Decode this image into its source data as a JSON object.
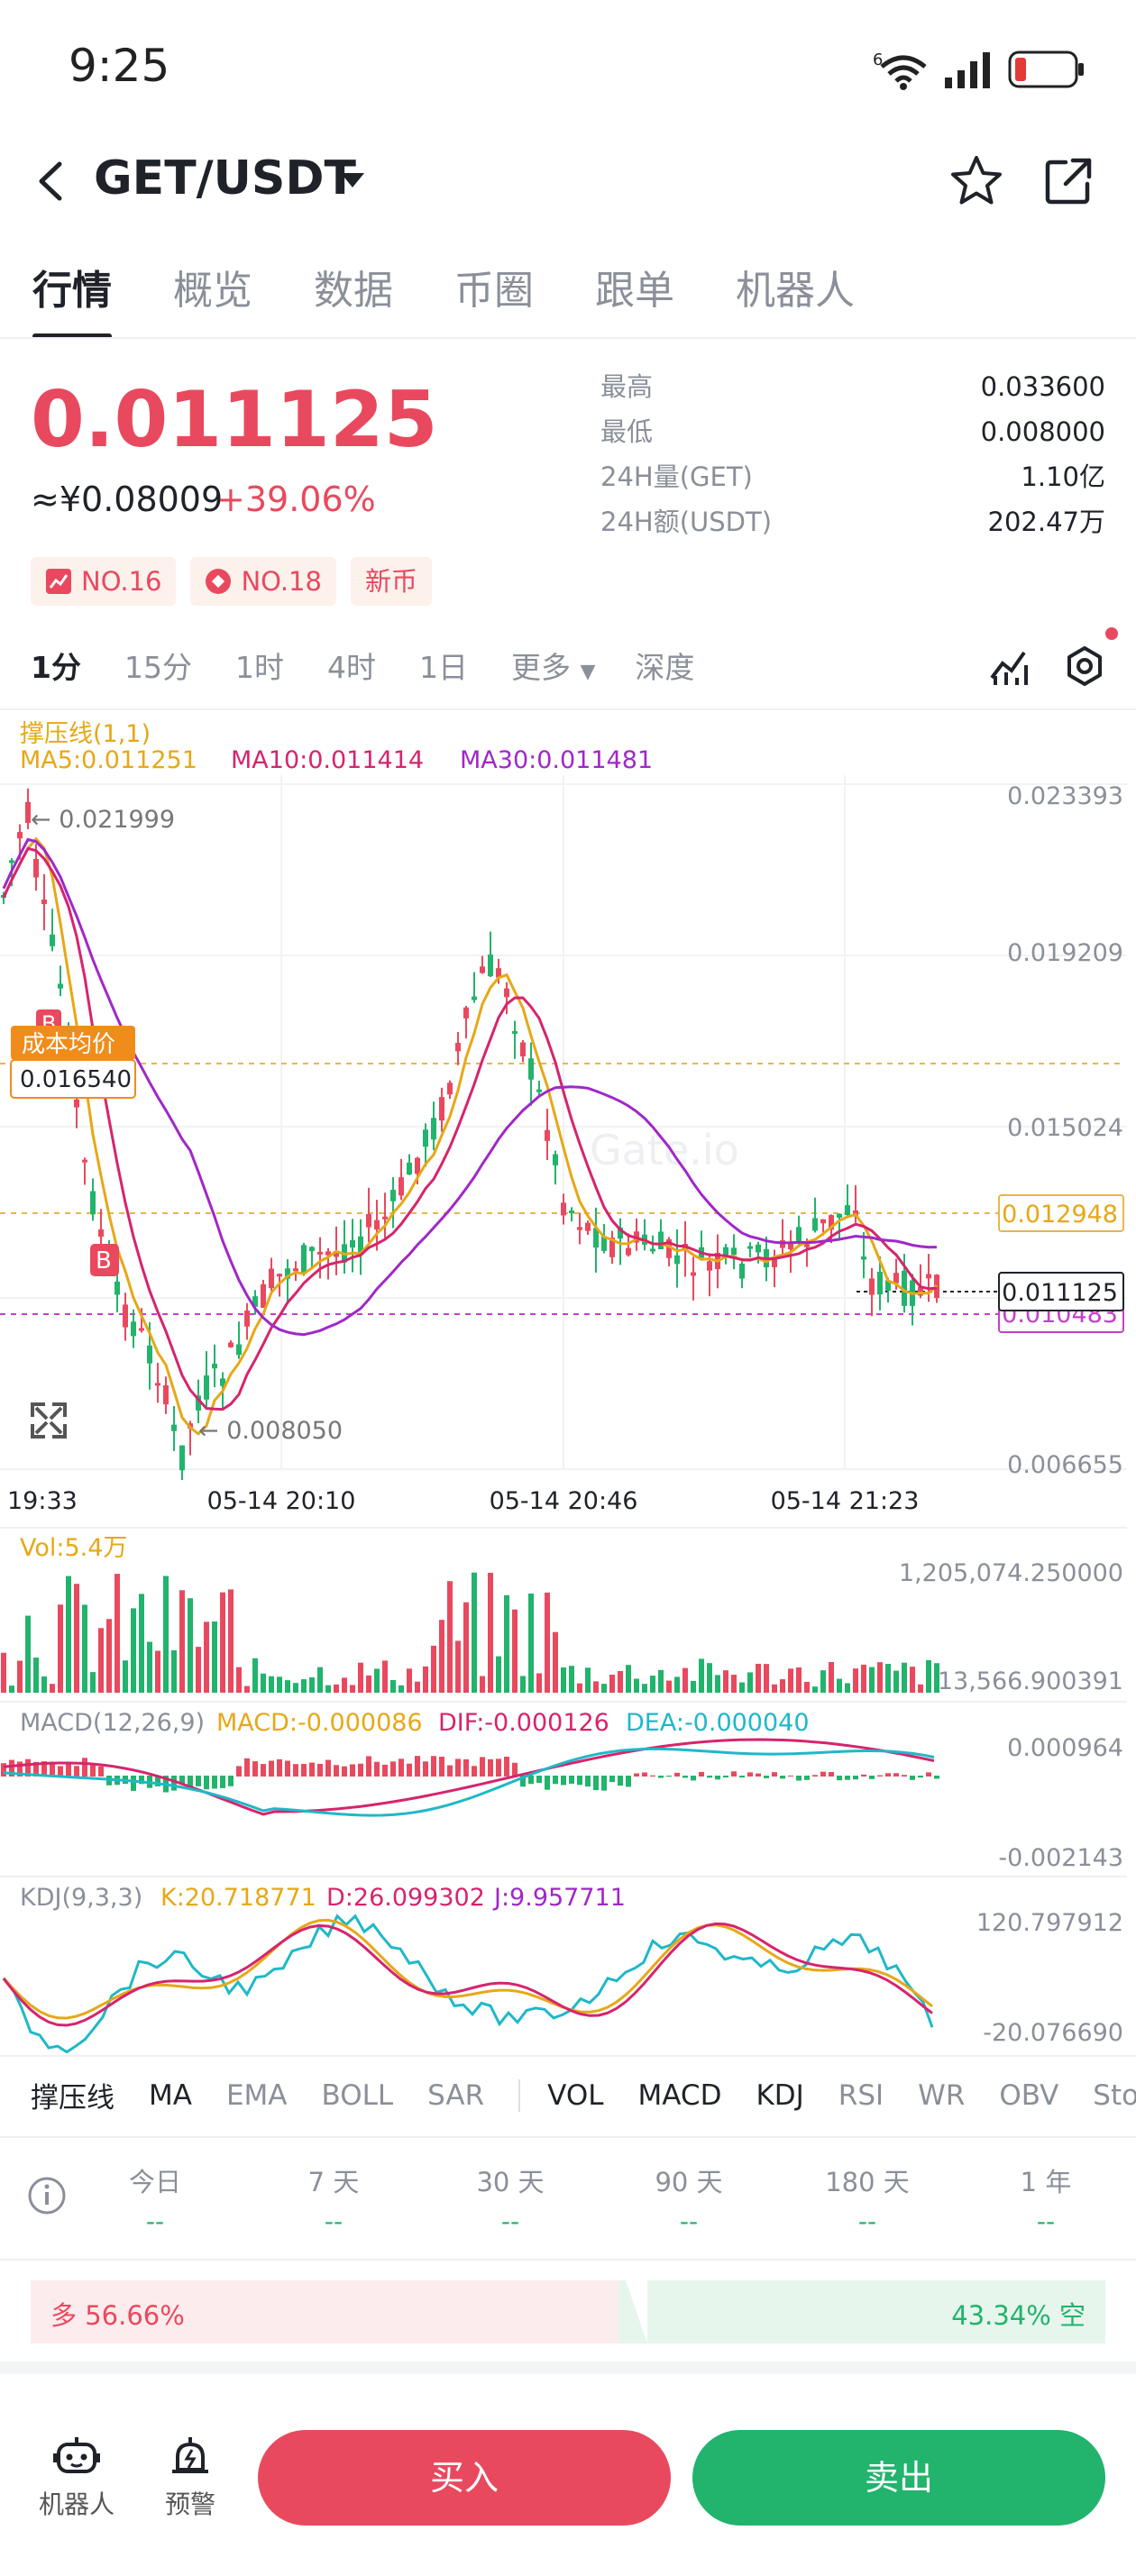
{
  "status_bar": {
    "time": "9:25",
    "wifi_badge": "6"
  },
  "header": {
    "pair": "GET/USDT"
  },
  "tabs": [
    "行情",
    "概览",
    "数据",
    "币圈",
    "跟单",
    "机器人"
  ],
  "price": {
    "last": "0.011125",
    "cny": "≈¥0.08009",
    "change": "+39.06%",
    "stats": [
      {
        "k": "最高",
        "v": "0.033600"
      },
      {
        "k": "最低",
        "v": "0.008000"
      },
      {
        "k": "24H量(GET)",
        "v": "1.10亿"
      },
      {
        "k": "24H额(USDT)",
        "v": "202.47万"
      }
    ],
    "badges": [
      "NO.16",
      "NO.18",
      "新币"
    ]
  },
  "intervals": [
    "1分",
    "15分",
    "1时",
    "4时",
    "1日",
    "更多",
    "深度"
  ],
  "main_chart": {
    "indicator": "撑压线(1,1)",
    "ma5": "MA5:0.011251",
    "ma10": "MA10:0.011414",
    "ma30": "MA30:0.011481",
    "y_labels": [
      "0.023393",
      "0.019209",
      "0.015024",
      "0.006655"
    ],
    "high_marker": "← 0.021999",
    "low_marker": "← 0.008050",
    "cost_label": "成本均价",
    "cost_value": "0.016540",
    "resist": "0.012948",
    "last_tag": "0.011125",
    "support": "0.010483",
    "watermark": "Gate.io",
    "buy_marker": "B",
    "x_labels": [
      "19:33",
      "05-14 20:10",
      "05-14 20:46",
      "05-14 21:23"
    ]
  },
  "vol": {
    "label": "Vol:5.4万",
    "max": "1,205,074.250000",
    "min": "13,566.900391"
  },
  "macd": {
    "label": "MACD(12,26,9)",
    "macd": "MACD:-0.000086",
    "dif": "DIF:-0.000126",
    "dea": "DEA:-0.000040",
    "max": "0.000964",
    "min": "-0.002143"
  },
  "kdj": {
    "label": "KDJ(9,3,3)",
    "k": "K:20.718771",
    "d": "D:26.099302",
    "j": "J:9.957711",
    "max": "120.797912",
    "min": "-20.076690"
  },
  "indicators": [
    "撑压线",
    "MA",
    "EMA",
    "BOLL",
    "SAR",
    "VOL",
    "MACD",
    "KDJ",
    "RSI",
    "WR",
    "OBV",
    "StochR"
  ],
  "periods": [
    {
      "label": "今日",
      "value": "--"
    },
    {
      "label": "7 天",
      "value": "--"
    },
    {
      "label": "30 天",
      "value": "--"
    },
    {
      "label": "90 天",
      "value": "--"
    },
    {
      "label": "180 天",
      "value": "--"
    },
    {
      "label": "1 年",
      "value": "--"
    }
  ],
  "ratio": {
    "long": "多 56.66%",
    "short": "43.34% 空"
  },
  "footer": {
    "robot": "机器人",
    "alert": "预警",
    "buy": "买入",
    "sell": "卖出"
  },
  "colors": {
    "up": "#e9495e",
    "down": "#22b36c",
    "ma5": "#e6a817",
    "ma10": "#d6246e",
    "ma30": "#a028c8"
  }
}
